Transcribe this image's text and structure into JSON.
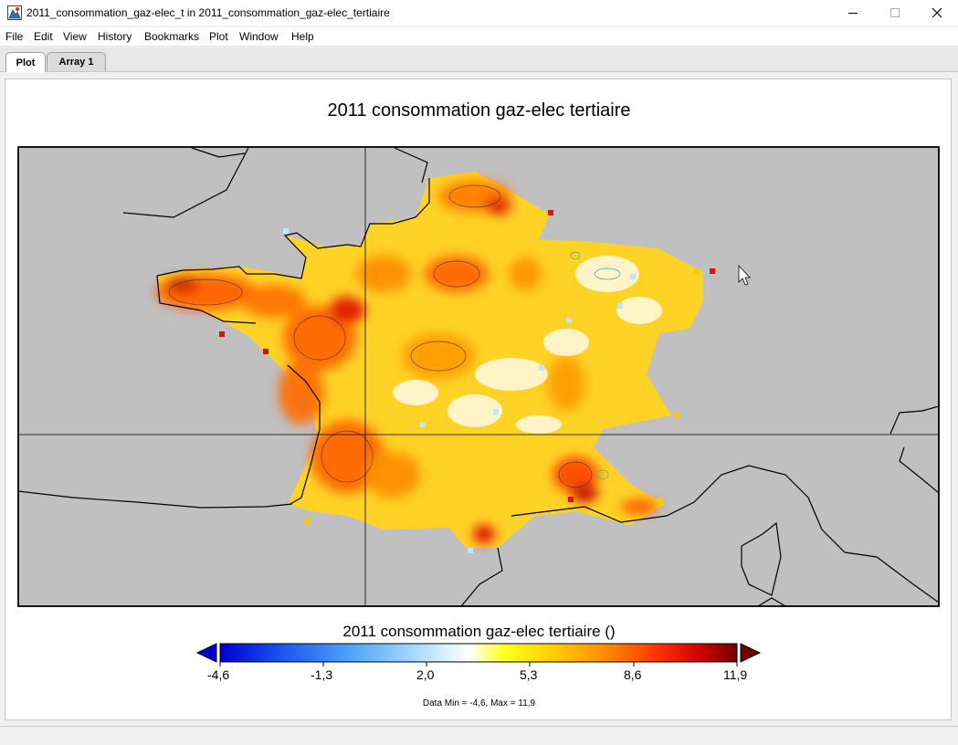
{
  "window": {
    "title": "2011_consommation_gaz-elec_t in 2011_consommation_gaz-elec_tertiaire",
    "icons": [
      "app-icon",
      "minimize-icon",
      "maximize-icon",
      "close-icon"
    ]
  },
  "menu": [
    "File",
    "Edit",
    "View",
    "History",
    "Bookmarks",
    "Plot",
    "Window",
    "Help"
  ],
  "tabs": [
    {
      "label": "Plot",
      "active": true
    },
    {
      "label": "Array 1",
      "active": false
    }
  ],
  "plot": {
    "title": "2011 consommation gaz-elec tertiaire",
    "map_background": "#c0c0c0"
  },
  "colorbar": {
    "title": "2011 consommation gaz-elec tertiaire ()",
    "ticks": [
      "-4,6",
      "-1,3",
      "2,0",
      "5,3",
      "8,6",
      "11,9"
    ],
    "min": -4.6,
    "max": 11.9,
    "colors": [
      "#0000d0",
      "#1a55f0",
      "#4fa0ff",
      "#a8dcff",
      "#ffffff",
      "#ffff20",
      "#ffd000",
      "#ff9000",
      "#ff3000",
      "#d00000",
      "#700000"
    ],
    "stats": "Data Min = -4,6, Max = 11,9"
  }
}
